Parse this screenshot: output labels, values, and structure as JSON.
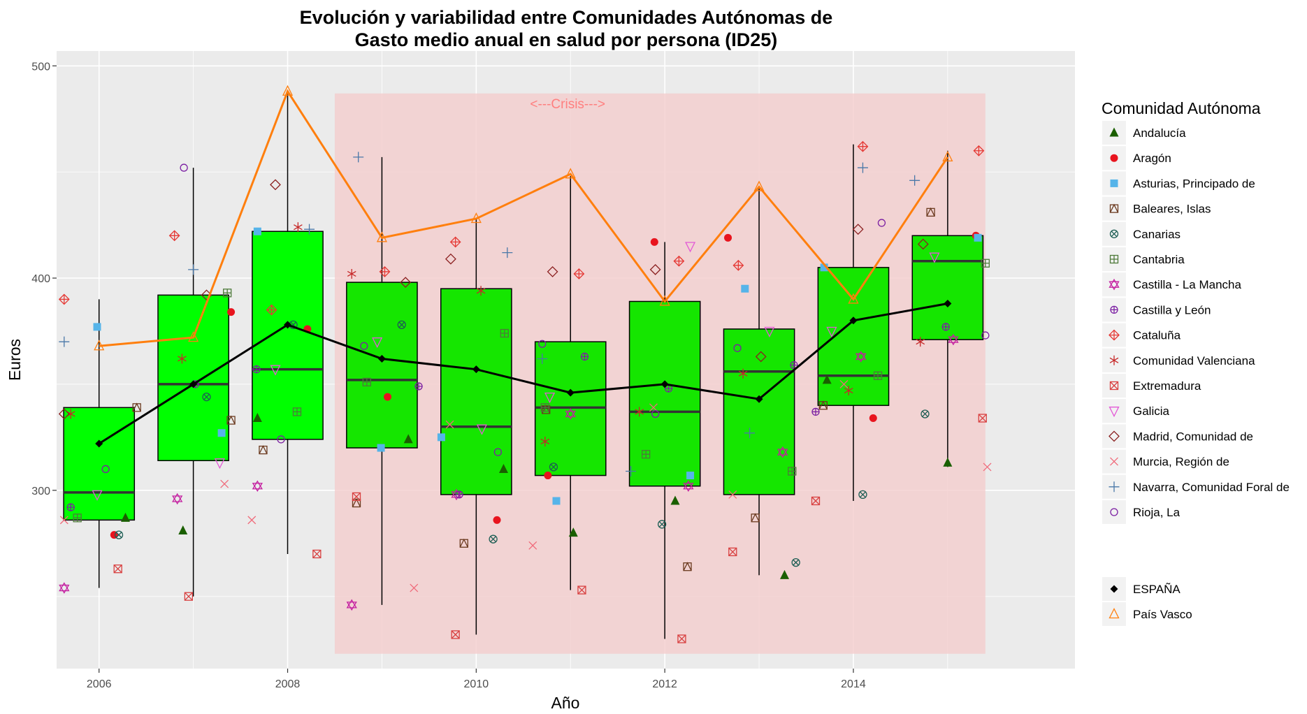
{
  "chart_data": {
    "type": "box+scatter+line",
    "title_line1": "Evolución y variabilidad entre Comunidades Autónomas de",
    "title_line2": "Gasto medio anual en salud por persona (ID25)",
    "xlabel": "Año",
    "ylabel": "Euros",
    "xlim": [
      2005.55,
      2016.35
    ],
    "ylim": [
      216,
      507
    ],
    "x_ticks": [
      2006,
      2008,
      2010,
      2012,
      2014
    ],
    "y_ticks": [
      300,
      400,
      500
    ],
    "crisis": {
      "x": [
        2008.5,
        2015.4
      ],
      "y": [
        223,
        487
      ],
      "label": "<---Crisis--->",
      "label_x": 2010.97,
      "label_y": 482,
      "color": "#f4cccc"
    },
    "box_fill_colors": [
      "#00ff00",
      "#00ff00",
      "#00ff00",
      "#15e600",
      "#15e600",
      "#15e600",
      "#15e600",
      "#15e600",
      "#15e600",
      "#15e600"
    ],
    "boxes": [
      {
        "x": 2006,
        "lower": 287,
        "q1": 286,
        "median": 299,
        "q3": 339,
        "upper": 390,
        "min": 254
      },
      {
        "x": 2007,
        "lower": 250,
        "q1": 314,
        "median": 350,
        "q3": 392,
        "upper": 452,
        "min": 250
      },
      {
        "x": 2008,
        "lower": 270,
        "q1": 324,
        "median": 357,
        "q3": 422,
        "upper": 488,
        "min": 270
      },
      {
        "x": 2009,
        "lower": 246,
        "q1": 320,
        "median": 352,
        "q3": 398,
        "upper": 457,
        "min": 246
      },
      {
        "x": 2010,
        "lower": 232,
        "q1": 298,
        "median": 330,
        "q3": 395,
        "upper": 428,
        "min": 232
      },
      {
        "x": 2011,
        "lower": 253,
        "q1": 307,
        "median": 339,
        "q3": 370,
        "upper": 448,
        "min": 253
      },
      {
        "x": 2012,
        "lower": 230,
        "q1": 302,
        "median": 337,
        "q3": 389,
        "upper": 417,
        "min": 230
      },
      {
        "x": 2013,
        "lower": 260,
        "q1": 298,
        "median": 356,
        "q3": 376,
        "upper": 443,
        "min": 260
      },
      {
        "x": 2014,
        "lower": 295,
        "q1": 340,
        "median": 354,
        "q3": 405,
        "upper": 463,
        "min": 295
      },
      {
        "x": 2015,
        "lower": 311,
        "q1": 371,
        "median": 408,
        "q3": 420,
        "upper": 460,
        "min": 311
      }
    ],
    "legend_title": "Comunidad Autónoma",
    "legend": [
      {
        "name": "Andalucía",
        "color": "#1a5f00",
        "shape": "triangle-filled"
      },
      {
        "name": "Aragón",
        "color": "#e8141e",
        "shape": "circle-filled"
      },
      {
        "name": "Asturias, Principado de",
        "color": "#56b4e9",
        "shape": "square-filled"
      },
      {
        "name": "Baleares, Islas",
        "color": "#6b3a1f",
        "shape": "square-triangle"
      },
      {
        "name": "Canarias",
        "color": "#1d5e54",
        "shape": "circle-x"
      },
      {
        "name": "Cantabria",
        "color": "#4e7a3a",
        "shape": "square-plus"
      },
      {
        "name": "Castilla - La Mancha",
        "color": "#c41fa0",
        "shape": "star-david"
      },
      {
        "name": "Castilla y León",
        "color": "#7b1fa2",
        "shape": "circle-plus"
      },
      {
        "name": "Cataluña",
        "color": "#e53935",
        "shape": "diamond-plus"
      },
      {
        "name": "Comunidad Valenciana",
        "color": "#c62828",
        "shape": "asterisk"
      },
      {
        "name": "Extremadura",
        "color": "#d84040",
        "shape": "square-x"
      },
      {
        "name": "Galicia",
        "color": "#e35ad6",
        "shape": "triangle-down"
      },
      {
        "name": "Madrid, Comunidad de",
        "color": "#8b2020",
        "shape": "diamond"
      },
      {
        "name": "Murcia, Región de",
        "color": "#f06a7a",
        "shape": "x"
      },
      {
        "name": "Navarra, Comunidad Foral de",
        "color": "#4a78a8",
        "shape": "plus"
      },
      {
        "name": "Rioja, La",
        "color": "#7b1fa2",
        "shape": "circle"
      }
    ],
    "legend2": [
      {
        "name": "ESPAÑA",
        "color": "#000000",
        "shape": "diamond-filled"
      },
      {
        "name": "País Vasco",
        "color": "#ff7f0e",
        "shape": "triangle"
      }
    ],
    "espana": {
      "x": [
        2006,
        2007,
        2008,
        2009,
        2010,
        2011,
        2012,
        2013,
        2014,
        2015
      ],
      "y": [
        322,
        350,
        378,
        362,
        357,
        346,
        350,
        343,
        380,
        388
      ],
      "color": "#000000"
    },
    "pais_vasco": {
      "x": [
        2006,
        2007,
        2008,
        2009,
        2010,
        2011,
        2012,
        2013,
        2014,
        2015
      ],
      "y": [
        368,
        372,
        488,
        419,
        428,
        449,
        389,
        443,
        390,
        457
      ],
      "color": "#ff7f0e"
    },
    "points": [
      {
        "s": 0,
        "x": 2006.28,
        "y": 287
      },
      {
        "s": 1,
        "x": 2006.16,
        "y": 279
      },
      {
        "s": 2,
        "x": 2005.98,
        "y": 377
      },
      {
        "s": 3,
        "x": 2006.4,
        "y": 339
      },
      {
        "s": 4,
        "x": 2006.21,
        "y": 279
      },
      {
        "s": 5,
        "x": 2005.77,
        "y": 287
      },
      {
        "s": 6,
        "x": 2005.63,
        "y": 254
      },
      {
        "s": 7,
        "x": 2005.7,
        "y": 292
      },
      {
        "s": 8,
        "x": 2005.63,
        "y": 390
      },
      {
        "s": 9,
        "x": 2005.7,
        "y": 336
      },
      {
        "s": 10,
        "x": 2006.2,
        "y": 263
      },
      {
        "s": 11,
        "x": 2005.98,
        "y": 298
      },
      {
        "s": 12,
        "x": 2005.63,
        "y": 336
      },
      {
        "s": 13,
        "x": 2005.63,
        "y": 286
      },
      {
        "s": 14,
        "x": 2005.63,
        "y": 370
      },
      {
        "s": 15,
        "x": 2006.07,
        "y": 310
      },
      {
        "s": 0,
        "x": 2006.89,
        "y": 281
      },
      {
        "s": 1,
        "x": 2007.4,
        "y": 384
      },
      {
        "s": 2,
        "x": 2007.3,
        "y": 327
      },
      {
        "s": 3,
        "x": 2007.4,
        "y": 333
      },
      {
        "s": 4,
        "x": 2007.14,
        "y": 344
      },
      {
        "s": 5,
        "x": 2007.36,
        "y": 393
      },
      {
        "s": 6,
        "x": 2006.83,
        "y": 296
      },
      {
        "s": 7,
        "x": 2007.02,
        "y": 350
      },
      {
        "s": 8,
        "x": 2006.8,
        "y": 420
      },
      {
        "s": 9,
        "x": 2006.88,
        "y": 362
      },
      {
        "s": 10,
        "x": 2006.95,
        "y": 250
      },
      {
        "s": 11,
        "x": 2007.28,
        "y": 313
      },
      {
        "s": 12,
        "x": 2007.14,
        "y": 392
      },
      {
        "s": 13,
        "x": 2007.33,
        "y": 303
      },
      {
        "s": 14,
        "x": 2007.0,
        "y": 404
      },
      {
        "s": 15,
        "x": 2006.9,
        "y": 452
      },
      {
        "s": 0,
        "x": 2007.68,
        "y": 334
      },
      {
        "s": 1,
        "x": 2008.21,
        "y": 376
      },
      {
        "s": 2,
        "x": 2007.68,
        "y": 422
      },
      {
        "s": 3,
        "x": 2007.74,
        "y": 319
      },
      {
        "s": 4,
        "x": 2008.06,
        "y": 378
      },
      {
        "s": 5,
        "x": 2008.1,
        "y": 337
      },
      {
        "s": 6,
        "x": 2007.68,
        "y": 302
      },
      {
        "s": 7,
        "x": 2007.67,
        "y": 357
      },
      {
        "s": 8,
        "x": 2007.83,
        "y": 385
      },
      {
        "s": 9,
        "x": 2008.11,
        "y": 424
      },
      {
        "s": 10,
        "x": 2008.31,
        "y": 270
      },
      {
        "s": 11,
        "x": 2007.87,
        "y": 357
      },
      {
        "s": 12,
        "x": 2007.87,
        "y": 444
      },
      {
        "s": 13,
        "x": 2007.62,
        "y": 286
      },
      {
        "s": 14,
        "x": 2008.23,
        "y": 423
      },
      {
        "s": 15,
        "x": 2007.93,
        "y": 324
      },
      {
        "s": 0,
        "x": 2009.28,
        "y": 324
      },
      {
        "s": 1,
        "x": 2009.06,
        "y": 344
      },
      {
        "s": 2,
        "x": 2008.99,
        "y": 320
      },
      {
        "s": 3,
        "x": 2008.73,
        "y": 294
      },
      {
        "s": 4,
        "x": 2009.21,
        "y": 378
      },
      {
        "s": 5,
        "x": 2008.84,
        "y": 351
      },
      {
        "s": 6,
        "x": 2008.68,
        "y": 246
      },
      {
        "s": 7,
        "x": 2009.39,
        "y": 349
      },
      {
        "s": 8,
        "x": 2009.03,
        "y": 403
      },
      {
        "s": 9,
        "x": 2008.68,
        "y": 402
      },
      {
        "s": 10,
        "x": 2008.73,
        "y": 297
      },
      {
        "s": 11,
        "x": 2008.95,
        "y": 370
      },
      {
        "s": 12,
        "x": 2009.25,
        "y": 398
      },
      {
        "s": 13,
        "x": 2009.34,
        "y": 254
      },
      {
        "s": 14,
        "x": 2008.75,
        "y": 457
      },
      {
        "s": 15,
        "x": 2008.81,
        "y": 368
      },
      {
        "s": 0,
        "x": 2010.29,
        "y": 310
      },
      {
        "s": 1,
        "x": 2010.22,
        "y": 286
      },
      {
        "s": 2,
        "x": 2009.63,
        "y": 325
      },
      {
        "s": 3,
        "x": 2009.87,
        "y": 275
      },
      {
        "s": 4,
        "x": 2010.18,
        "y": 277
      },
      {
        "s": 5,
        "x": 2010.3,
        "y": 374
      },
      {
        "s": 6,
        "x": 2009.79,
        "y": 298
      },
      {
        "s": 7,
        "x": 2009.82,
        "y": 298
      },
      {
        "s": 8,
        "x": 2009.78,
        "y": 417
      },
      {
        "s": 9,
        "x": 2010.05,
        "y": 394
      },
      {
        "s": 10,
        "x": 2009.78,
        "y": 232
      },
      {
        "s": 11,
        "x": 2010.06,
        "y": 329
      },
      {
        "s": 12,
        "x": 2009.73,
        "y": 409
      },
      {
        "s": 13,
        "x": 2009.72,
        "y": 331
      },
      {
        "s": 14,
        "x": 2010.33,
        "y": 412
      },
      {
        "s": 15,
        "x": 2010.23,
        "y": 318
      },
      {
        "s": 0,
        "x": 2011.03,
        "y": 280
      },
      {
        "s": 1,
        "x": 2010.76,
        "y": 307
      },
      {
        "s": 2,
        "x": 2010.85,
        "y": 295
      },
      {
        "s": 3,
        "x": 2010.74,
        "y": 338
      },
      {
        "s": 4,
        "x": 2010.82,
        "y": 311
      },
      {
        "s": 5,
        "x": 2010.73,
        "y": 339
      },
      {
        "s": 6,
        "x": 2011.0,
        "y": 336
      },
      {
        "s": 7,
        "x": 2011.15,
        "y": 363
      },
      {
        "s": 8,
        "x": 2011.09,
        "y": 402
      },
      {
        "s": 9,
        "x": 2010.73,
        "y": 323
      },
      {
        "s": 10,
        "x": 2011.12,
        "y": 253
      },
      {
        "s": 11,
        "x": 2010.78,
        "y": 344
      },
      {
        "s": 12,
        "x": 2010.81,
        "y": 403
      },
      {
        "s": 13,
        "x": 2010.6,
        "y": 274
      },
      {
        "s": 14,
        "x": 2010.7,
        "y": 362
      },
      {
        "s": 15,
        "x": 2010.7,
        "y": 369
      },
      {
        "s": 0,
        "x": 2012.11,
        "y": 295
      },
      {
        "s": 1,
        "x": 2011.89,
        "y": 417
      },
      {
        "s": 2,
        "x": 2012.27,
        "y": 307
      },
      {
        "s": 3,
        "x": 2012.24,
        "y": 264
      },
      {
        "s": 4,
        "x": 2011.97,
        "y": 284
      },
      {
        "s": 5,
        "x": 2011.8,
        "y": 317
      },
      {
        "s": 6,
        "x": 2012.25,
        "y": 302
      },
      {
        "s": 7,
        "x": 2012.04,
        "y": 348
      },
      {
        "s": 8,
        "x": 2012.15,
        "y": 408
      },
      {
        "s": 9,
        "x": 2011.73,
        "y": 337
      },
      {
        "s": 10,
        "x": 2012.18,
        "y": 230
      },
      {
        "s": 11,
        "x": 2012.27,
        "y": 415
      },
      {
        "s": 12,
        "x": 2011.9,
        "y": 404
      },
      {
        "s": 13,
        "x": 2011.88,
        "y": 339
      },
      {
        "s": 14,
        "x": 2011.64,
        "y": 309
      },
      {
        "s": 15,
        "x": 2011.9,
        "y": 336
      },
      {
        "s": 0,
        "x": 2013.27,
        "y": 260
      },
      {
        "s": 1,
        "x": 2012.67,
        "y": 419
      },
      {
        "s": 2,
        "x": 2012.85,
        "y": 395
      },
      {
        "s": 3,
        "x": 2012.96,
        "y": 287
      },
      {
        "s": 4,
        "x": 2013.39,
        "y": 266
      },
      {
        "s": 5,
        "x": 2013.35,
        "y": 309
      },
      {
        "s": 6,
        "x": 2013.25,
        "y": 318
      },
      {
        "s": 7,
        "x": 2013.37,
        "y": 359
      },
      {
        "s": 8,
        "x": 2012.78,
        "y": 406
      },
      {
        "s": 9,
        "x": 2012.83,
        "y": 355
      },
      {
        "s": 10,
        "x": 2012.72,
        "y": 271
      },
      {
        "s": 11,
        "x": 2013.11,
        "y": 375
      },
      {
        "s": 12,
        "x": 2013.02,
        "y": 363
      },
      {
        "s": 13,
        "x": 2012.72,
        "y": 298
      },
      {
        "s": 14,
        "x": 2012.9,
        "y": 327
      },
      {
        "s": 15,
        "x": 2012.77,
        "y": 367
      },
      {
        "s": 0,
        "x": 2013.72,
        "y": 352
      },
      {
        "s": 1,
        "x": 2014.21,
        "y": 334
      },
      {
        "s": 2,
        "x": 2013.69,
        "y": 405
      },
      {
        "s": 3,
        "x": 2013.68,
        "y": 340
      },
      {
        "s": 4,
        "x": 2014.1,
        "y": 298
      },
      {
        "s": 5,
        "x": 2014.26,
        "y": 354
      },
      {
        "s": 6,
        "x": 2014.08,
        "y": 363
      },
      {
        "s": 7,
        "x": 2013.6,
        "y": 337
      },
      {
        "s": 8,
        "x": 2014.1,
        "y": 462
      },
      {
        "s": 9,
        "x": 2013.95,
        "y": 347
      },
      {
        "s": 10,
        "x": 2013.6,
        "y": 295
      },
      {
        "s": 11,
        "x": 2013.77,
        "y": 375
      },
      {
        "s": 12,
        "x": 2014.05,
        "y": 423
      },
      {
        "s": 13,
        "x": 2013.9,
        "y": 350
      },
      {
        "s": 14,
        "x": 2014.1,
        "y": 452
      },
      {
        "s": 15,
        "x": 2014.3,
        "y": 426
      },
      {
        "s": 0,
        "x": 2015.0,
        "y": 313
      },
      {
        "s": 1,
        "x": 2015.3,
        "y": 420
      },
      {
        "s": 2,
        "x": 2015.32,
        "y": 419
      },
      {
        "s": 3,
        "x": 2014.82,
        "y": 431
      },
      {
        "s": 4,
        "x": 2014.76,
        "y": 336
      },
      {
        "s": 5,
        "x": 2015.4,
        "y": 407
      },
      {
        "s": 6,
        "x": 2015.06,
        "y": 371
      },
      {
        "s": 7,
        "x": 2014.98,
        "y": 377
      },
      {
        "s": 8,
        "x": 2015.33,
        "y": 460
      },
      {
        "s": 9,
        "x": 2014.71,
        "y": 370
      },
      {
        "s": 10,
        "x": 2015.37,
        "y": 334
      },
      {
        "s": 11,
        "x": 2014.86,
        "y": 410
      },
      {
        "s": 12,
        "x": 2014.74,
        "y": 416
      },
      {
        "s": 13,
        "x": 2015.42,
        "y": 311
      },
      {
        "s": 14,
        "x": 2014.65,
        "y": 446
      },
      {
        "s": 15,
        "x": 2015.4,
        "y": 373
      }
    ],
    "grid": true,
    "legend_position": "right"
  }
}
